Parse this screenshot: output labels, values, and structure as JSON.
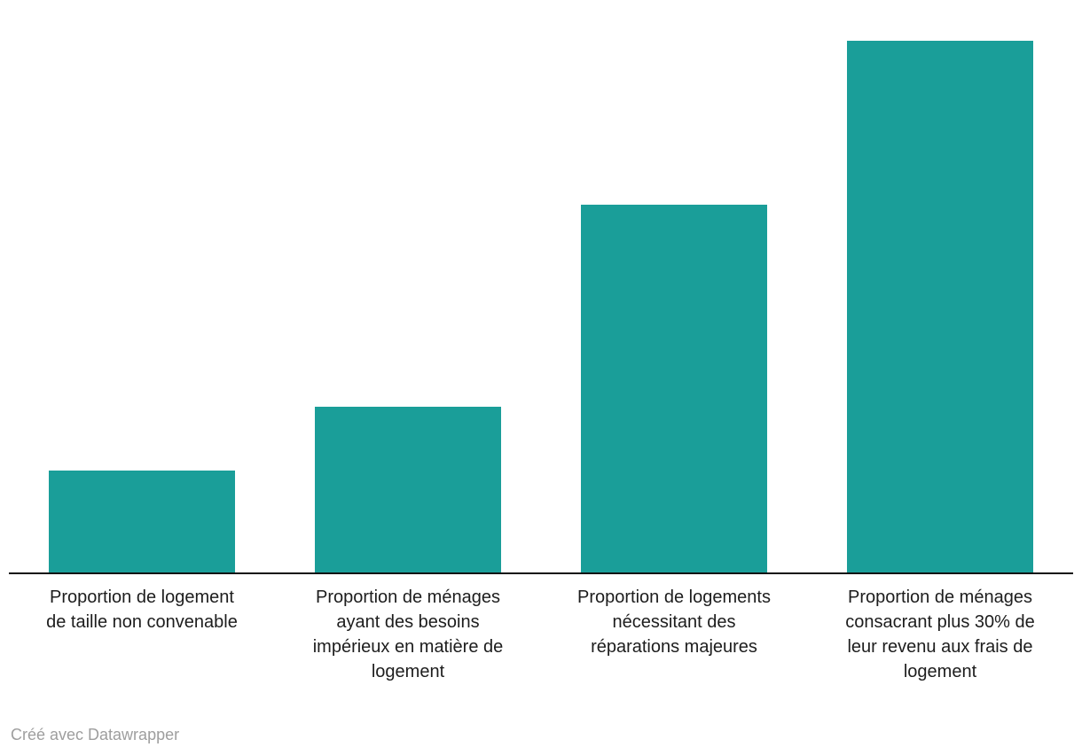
{
  "chart_data": {
    "type": "bar",
    "title": "",
    "xlabel": "",
    "ylabel": "",
    "categories": [
      "Proportion de logement de taille non convenable",
      "Proportion de ménages ayant des besoins impérieux en matière de logement",
      "Proportion de logements nécessitant des réparations majeures",
      "Proportion de ménages consacrant plus 30% de leur revenu aux frais de logement"
    ],
    "category_label_lines": [
      [
        "Proportion de logement",
        "de taille non convenable"
      ],
      [
        "Proportion de ménages",
        "ayant des besoins",
        "impérieux en matière de",
        "logement"
      ],
      [
        "Proportion de logements",
        "nécessitant des",
        "réparations majeures"
      ],
      [
        "Proportion de ménages",
        "consacrant plus 30% de",
        "leur revenu aux frais de",
        "logement"
      ]
    ],
    "values": [
      19.2,
      31.2,
      69.2,
      100
    ],
    "ylim": [
      0,
      100
    ],
    "grid": false,
    "legend": false,
    "bar_color": "#1a9e99"
  },
  "colors": {
    "bar": "#1a9e99",
    "axis_line": "#121212",
    "label_text": "#1d1d1d",
    "credit_text": "#9e9e9e",
    "background": "#ffffff"
  },
  "footer": {
    "credit": "Créé avec Datawrapper"
  }
}
